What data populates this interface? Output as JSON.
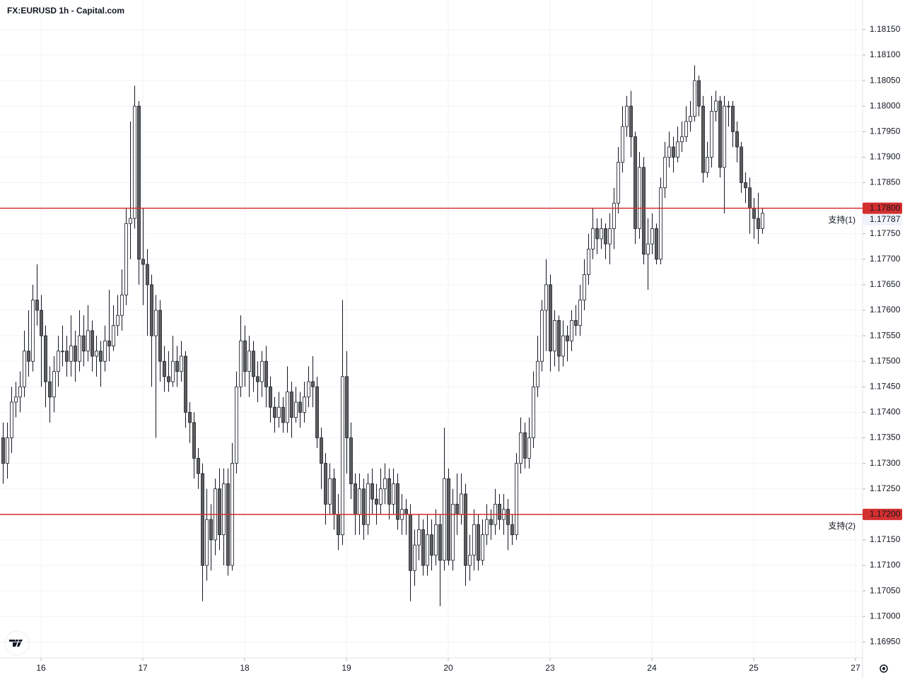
{
  "chart_data": {
    "type": "candlestick",
    "title": "FX:EURUSD 1h - Capital.com",
    "xlim": [
      -0.67,
      202.67
    ],
    "xticks": [
      {
        "value": 9,
        "label": "16"
      },
      {
        "value": 33,
        "label": "17"
      },
      {
        "value": 57,
        "label": "18"
      },
      {
        "value": 81,
        "label": "19"
      },
      {
        "value": 105,
        "label": "20"
      },
      {
        "value": 129,
        "label": "23"
      },
      {
        "value": 153,
        "label": "24"
      },
      {
        "value": 177,
        "label": "25"
      },
      {
        "value": 201,
        "label": "27"
      }
    ],
    "ylim": [
      1.1692,
      1.18208
    ],
    "yticks": [
      {
        "value": 1.1815,
        "label": "1.18150"
      },
      {
        "value": 1.181,
        "label": "1.18100"
      },
      {
        "value": 1.1805,
        "label": "1.18050"
      },
      {
        "value": 1.18,
        "label": "1.18000"
      },
      {
        "value": 1.1795,
        "label": "1.17950"
      },
      {
        "value": 1.179,
        "label": "1.17900"
      },
      {
        "value": 1.1785,
        "label": "1.17850"
      },
      {
        "value": 1.178,
        "label": "1.17800"
      },
      {
        "value": 1.1775,
        "label": "1.17750"
      },
      {
        "value": 1.177,
        "label": "1.17700"
      },
      {
        "value": 1.1765,
        "label": "1.17650"
      },
      {
        "value": 1.176,
        "label": "1.17600"
      },
      {
        "value": 1.1755,
        "label": "1.17550"
      },
      {
        "value": 1.175,
        "label": "1.17500"
      },
      {
        "value": 1.1745,
        "label": "1.17450"
      },
      {
        "value": 1.174,
        "label": "1.17400"
      },
      {
        "value": 1.1735,
        "label": "1.17350"
      },
      {
        "value": 1.173,
        "label": "1.17300"
      },
      {
        "value": 1.1725,
        "label": "1.17250"
      },
      {
        "value": 1.172,
        "label": "1.17200"
      },
      {
        "value": 1.1715,
        "label": "1.17150"
      },
      {
        "value": 1.171,
        "label": "1.17100"
      },
      {
        "value": 1.1705,
        "label": "1.17050"
      },
      {
        "value": 1.17,
        "label": "1.17000"
      },
      {
        "value": 1.1695,
        "label": "1.16950"
      }
    ],
    "grid": true,
    "up_color": "#ffffff",
    "down_color": "#5d5d5d",
    "outline_color": "#131722",
    "levels": [
      {
        "value": 1.178,
        "label": "1.17800",
        "text": "支持(1)",
        "color": "#d32f2f"
      },
      {
        "value": 1.172,
        "label": "1.17200",
        "text": "支持(2)",
        "color": "#d32f2f"
      }
    ],
    "last_price": {
      "value": 1.17787,
      "label": "1.17787"
    },
    "open": [
      1.1735,
      1.173,
      1.1735,
      1.1742,
      1.1743,
      1.1745,
      1.1752,
      1.175,
      1.1762,
      1.176,
      1.1755,
      1.1746,
      1.1743,
      1.1748,
      1.1752,
      1.1752,
      1.175,
      1.1753,
      1.175,
      1.1755,
      1.1752,
      1.1756,
      1.1751,
      1.1752,
      1.175,
      1.1754,
      1.1753,
      1.1757,
      1.1759,
      1.1763,
      1.1777,
      1.1778,
      1.18,
      1.177,
      1.1769,
      1.1765,
      1.1755,
      1.176,
      1.175,
      1.1747,
      1.1746,
      1.175,
      1.1748,
      1.1751,
      1.174,
      1.1738,
      1.1731,
      1.1728,
      1.171,
      1.1719,
      1.1715,
      1.1725,
      1.1716,
      1.1726,
      1.171,
      1.173,
      1.1745,
      1.1754,
      1.1748,
      1.1752,
      1.1747,
      1.1746,
      1.175,
      1.1745,
      1.1741,
      1.1739,
      1.1741,
      1.1738,
      1.1744,
      1.1739,
      1.1742,
      1.174,
      1.1743,
      1.1746,
      1.1745,
      1.1735,
      1.173,
      1.1722,
      1.1727,
      1.172,
      1.1716,
      1.1747,
      1.1735,
      1.1726,
      1.172,
      1.1725,
      1.1718,
      1.1726,
      1.1723,
      1.1722,
      1.1725,
      1.1727,
      1.1722,
      1.1726,
      1.1719,
      1.1721,
      1.172,
      1.1709,
      1.1714,
      1.1717,
      1.171,
      1.1716,
      1.1712,
      1.1718,
      1.1711,
      1.1727,
      1.1711,
      1.1722,
      1.172,
      1.1724,
      1.171,
      1.1712,
      1.1718,
      1.1711,
      1.1716,
      1.1719,
      1.1718,
      1.1722,
      1.1719,
      1.1721,
      1.1718,
      1.1716,
      1.173,
      1.1736,
      1.1731,
      1.1735,
      1.1745,
      1.175,
      1.176,
      1.1765,
      1.1752,
      1.1758,
      1.1751,
      1.1755,
      1.1754,
      1.1758,
      1.1757,
      1.1762,
      1.1767,
      1.1772,
      1.1776,
      1.1774,
      1.1776,
      1.1773,
      1.1776,
      1.1781,
      1.1789,
      1.1796,
      1.18,
      1.1794,
      1.1776,
      1.1788,
      1.1771,
      1.1773,
      1.1776,
      1.177,
      1.1784,
      1.179,
      1.1792,
      1.179,
      1.1793,
      1.1794,
      1.1797,
      1.1798,
      1.1805,
      1.18,
      1.1787,
      1.179,
      1.1799,
      1.1801,
      1.1788,
      1.18,
      1.18,
      1.1795,
      1.1792,
      1.1785,
      1.1784,
      1.178,
      1.1778,
      1.1776
    ],
    "high": [
      1.1738,
      1.1738,
      1.1745,
      1.1746,
      1.1748,
      1.1756,
      1.176,
      1.1765,
      1.1769,
      1.1763,
      1.1757,
      1.1749,
      1.1751,
      1.1755,
      1.1757,
      1.1755,
      1.1759,
      1.1756,
      1.176,
      1.1759,
      1.1761,
      1.1758,
      1.1755,
      1.1754,
      1.1757,
      1.1764,
      1.1761,
      1.1763,
      1.1768,
      1.178,
      1.1797,
      1.1804,
      1.1801,
      1.178,
      1.1772,
      1.1767,
      1.1763,
      1.1762,
      1.1753,
      1.1752,
      1.1755,
      1.1753,
      1.1754,
      1.1752,
      1.1742,
      1.174,
      1.1733,
      1.173,
      1.1725,
      1.1722,
      1.1727,
      1.1729,
      1.1729,
      1.1729,
      1.1734,
      1.1748,
      1.1759,
      1.1757,
      1.1755,
      1.1754,
      1.175,
      1.1752,
      1.1753,
      1.1747,
      1.1743,
      1.1744,
      1.1743,
      1.1749,
      1.1746,
      1.1745,
      1.1744,
      1.1746,
      1.1749,
      1.1751,
      1.1747,
      1.1737,
      1.1732,
      1.173,
      1.1729,
      1.1724,
      1.1762,
      1.1752,
      1.1738,
      1.1728,
      1.1728,
      1.1727,
      1.1728,
      1.1729,
      1.1726,
      1.1729,
      1.173,
      1.1729,
      1.1729,
      1.1728,
      1.1724,
      1.1723,
      1.1722,
      1.1717,
      1.172,
      1.1719,
      1.172,
      1.1719,
      1.1721,
      1.172,
      1.1737,
      1.1729,
      1.1725,
      1.1728,
      1.1728,
      1.1726,
      1.1716,
      1.1721,
      1.172,
      1.1719,
      1.1722,
      1.1721,
      1.1725,
      1.1724,
      1.1724,
      1.1723,
      1.172,
      1.1732,
      1.1739,
      1.1738,
      1.1739,
      1.1748,
      1.1755,
      1.1762,
      1.177,
      1.1767,
      1.176,
      1.1759,
      1.1758,
      1.1757,
      1.176,
      1.1761,
      1.1765,
      1.177,
      1.1775,
      1.178,
      1.1778,
      1.1778,
      1.1777,
      1.1779,
      1.1784,
      1.1792,
      1.18,
      1.1802,
      1.1803,
      1.1795,
      1.1791,
      1.179,
      1.1778,
      1.1779,
      1.1777,
      1.1786,
      1.1793,
      1.1795,
      1.1794,
      1.1796,
      1.1797,
      1.18,
      1.1801,
      1.1808,
      1.1806,
      1.1802,
      1.1793,
      1.1802,
      1.1803,
      1.1802,
      1.1802,
      1.1801,
      1.1801,
      1.1797,
      1.1793,
      1.1787,
      1.1786,
      1.1782,
      1.1783,
      1.178
    ],
    "low": [
      1.1726,
      1.1727,
      1.1732,
      1.1739,
      1.174,
      1.1743,
      1.1747,
      1.1748,
      1.1757,
      1.1745,
      1.1741,
      1.1738,
      1.174,
      1.1745,
      1.1749,
      1.1747,
      1.1747,
      1.1746,
      1.1748,
      1.1749,
      1.175,
      1.1748,
      1.1747,
      1.1745,
      1.1748,
      1.175,
      1.1752,
      1.1755,
      1.1756,
      1.1761,
      1.177,
      1.1776,
      1.1765,
      1.1761,
      1.1755,
      1.1745,
      1.1735,
      1.1746,
      1.1744,
      1.1744,
      1.1745,
      1.1745,
      1.1746,
      1.1737,
      1.1734,
      1.1727,
      1.1725,
      1.1703,
      1.1707,
      1.1709,
      1.1712,
      1.1713,
      1.171,
      1.1708,
      1.1709,
      1.1728,
      1.1743,
      1.1745,
      1.1743,
      1.1744,
      1.1742,
      1.1743,
      1.1741,
      1.1738,
      1.1736,
      1.1737,
      1.1736,
      1.1736,
      1.1735,
      1.1738,
      1.1737,
      1.1738,
      1.1741,
      1.1741,
      1.1733,
      1.1725,
      1.1718,
      1.172,
      1.1717,
      1.1713,
      1.1714,
      1.1728,
      1.1723,
      1.1716,
      1.1716,
      1.1715,
      1.1716,
      1.172,
      1.1718,
      1.172,
      1.1722,
      1.1719,
      1.172,
      1.1717,
      1.1716,
      1.1716,
      1.1703,
      1.1706,
      1.1711,
      1.1708,
      1.1708,
      1.1709,
      1.171,
      1.1702,
      1.1709,
      1.171,
      1.1709,
      1.1716,
      1.1718,
      1.1706,
      1.1707,
      1.1709,
      1.1709,
      1.171,
      1.1714,
      1.1715,
      1.1716,
      1.1717,
      1.1716,
      1.1713,
      1.1714,
      1.1715,
      1.1728,
      1.1729,
      1.1729,
      1.1733,
      1.1743,
      1.1748,
      1.1752,
      1.1748,
      1.1749,
      1.1748,
      1.1749,
      1.175,
      1.1752,
      1.1755,
      1.1755,
      1.176,
      1.1765,
      1.177,
      1.1771,
      1.1772,
      1.177,
      1.1769,
      1.1772,
      1.1779,
      1.1787,
      1.1794,
      1.179,
      1.1773,
      1.1774,
      1.1769,
      1.1764,
      1.1771,
      1.1769,
      1.1769,
      1.1782,
      1.1788,
      1.1787,
      1.1789,
      1.1791,
      1.1793,
      1.1795,
      1.1797,
      1.1798,
      1.1785,
      1.1786,
      1.1788,
      1.1797,
      1.1786,
      1.1779,
      1.1796,
      1.1792,
      1.1789,
      1.1783,
      1.1781,
      1.1775,
      1.1774,
      1.1773,
      1.1775
    ],
    "close": [
      1.173,
      1.1735,
      1.1742,
      1.1743,
      1.1745,
      1.1752,
      1.175,
      1.1762,
      1.176,
      1.1755,
      1.1746,
      1.1743,
      1.1748,
      1.1752,
      1.1752,
      1.175,
      1.1753,
      1.175,
      1.1755,
      1.1752,
      1.1756,
      1.1751,
      1.1752,
      1.175,
      1.1754,
      1.1753,
      1.1757,
      1.1759,
      1.1763,
      1.1777,
      1.1778,
      1.18,
      1.177,
      1.1769,
      1.1765,
      1.1755,
      1.176,
      1.175,
      1.1747,
      1.1746,
      1.175,
      1.1748,
      1.1751,
      1.174,
      1.1738,
      1.1731,
      1.1728,
      1.171,
      1.1719,
      1.1715,
      1.1725,
      1.1716,
      1.1726,
      1.171,
      1.173,
      1.1745,
      1.1754,
      1.1748,
      1.1752,
      1.1747,
      1.1746,
      1.175,
      1.1745,
      1.1741,
      1.1739,
      1.1741,
      1.1738,
      1.1744,
      1.1739,
      1.1742,
      1.174,
      1.1743,
      1.1746,
      1.1745,
      1.1735,
      1.173,
      1.1722,
      1.1727,
      1.172,
      1.1716,
      1.1747,
      1.1735,
      1.1726,
      1.172,
      1.1725,
      1.1718,
      1.1726,
      1.1723,
      1.1722,
      1.1725,
      1.1727,
      1.1722,
      1.1726,
      1.1719,
      1.1721,
      1.172,
      1.1709,
      1.1714,
      1.1717,
      1.171,
      1.1716,
      1.1712,
      1.1718,
      1.1711,
      1.1727,
      1.1711,
      1.1722,
      1.172,
      1.1724,
      1.171,
      1.1712,
      1.1718,
      1.1711,
      1.1716,
      1.1719,
      1.1718,
      1.1722,
      1.1719,
      1.1721,
      1.1718,
      1.1716,
      1.173,
      1.1736,
      1.1731,
      1.1735,
      1.1745,
      1.175,
      1.176,
      1.1765,
      1.1752,
      1.1758,
      1.1751,
      1.1755,
      1.1754,
      1.1758,
      1.1757,
      1.1762,
      1.1767,
      1.1772,
      1.1776,
      1.1774,
      1.1776,
      1.1773,
      1.1776,
      1.1781,
      1.1789,
      1.1796,
      1.18,
      1.1794,
      1.1776,
      1.1788,
      1.1771,
      1.1773,
      1.1776,
      1.177,
      1.1784,
      1.179,
      1.1792,
      1.179,
      1.1793,
      1.1794,
      1.1797,
      1.1798,
      1.1805,
      1.18,
      1.1787,
      1.179,
      1.1799,
      1.1801,
      1.1788,
      1.18,
      1.18,
      1.1795,
      1.1792,
      1.1785,
      1.1784,
      1.178,
      1.1778,
      1.1776,
      1.1779
    ]
  }
}
